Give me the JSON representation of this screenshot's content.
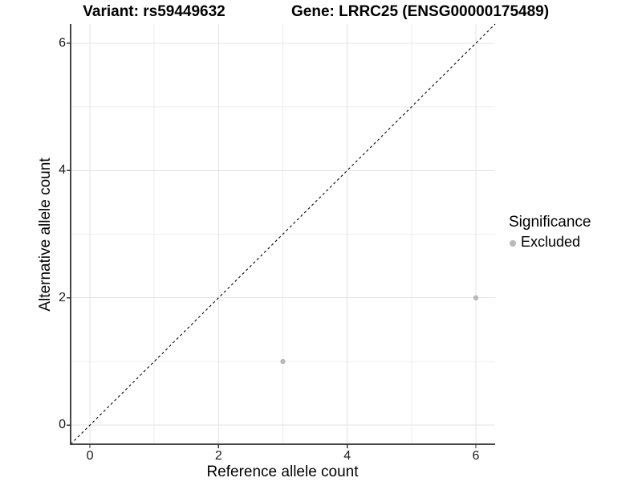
{
  "titles": {
    "variant": "Variant: rs59449632",
    "gene": "Gene: LRRC25 (ENSG00000175489)"
  },
  "axes": {
    "x_label": "Reference allele count",
    "y_label": "Alternative allele count"
  },
  "legend": {
    "title": "Significance",
    "items": [
      {
        "label": "Excluded",
        "color": "#b9b9b9"
      }
    ]
  },
  "colors": {
    "grid_major": "#e3e3e3",
    "grid_minor": "#eeeeee",
    "axis_line": "#454545",
    "tick_mark": "#333333",
    "identity_line": "#000000",
    "point": "#b9b9b9",
    "tick_text": "#1a1a1a"
  },
  "chart_data": {
    "type": "scatter",
    "title": "Variant: rs59449632 — Gene: LRRC25 (ENSG00000175489)",
    "xlabel": "Reference allele count",
    "ylabel": "Alternative allele count",
    "xlim": [
      -0.3,
      6.3
    ],
    "ylim": [
      -0.3,
      6.3
    ],
    "x_major_ticks": [
      0,
      2,
      4,
      6
    ],
    "y_major_ticks": [
      0,
      2,
      4,
      6
    ],
    "x_minor_ticks": [
      1,
      3,
      5
    ],
    "y_minor_ticks": [
      1,
      3,
      5
    ],
    "grid": "major+minor",
    "legend_position": "right",
    "series": [
      {
        "name": "Excluded",
        "color": "#b9b9b9",
        "points": [
          {
            "x": 3,
            "y": 1
          },
          {
            "x": 6,
            "y": 2
          }
        ]
      }
    ],
    "reference_line": {
      "kind": "identity",
      "slope": 1,
      "intercept": 0,
      "style": "dashed",
      "color": "#000000"
    }
  }
}
